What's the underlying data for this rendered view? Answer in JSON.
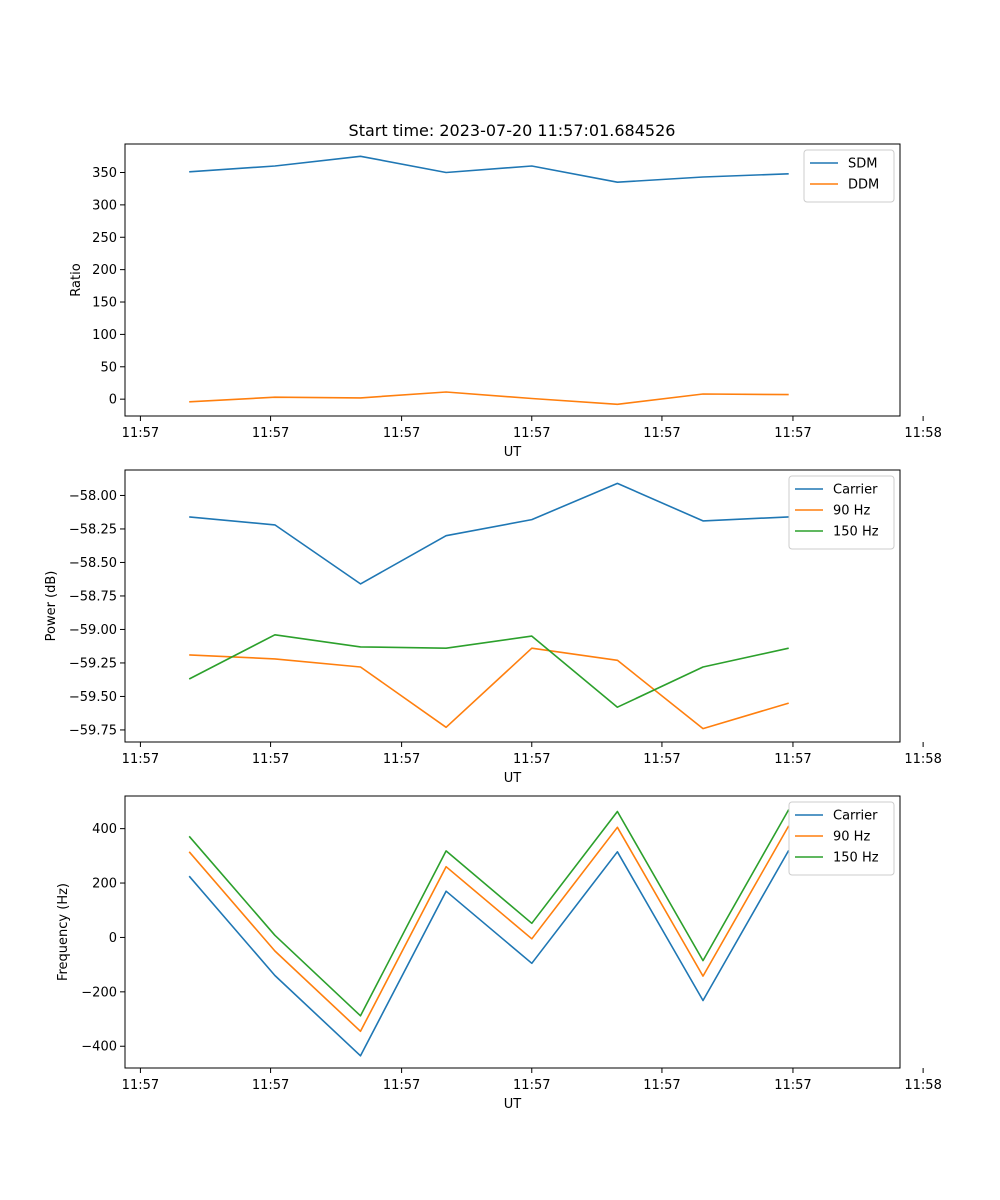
{
  "figure_title": "Start time: 2023-07-20 11:57:01.684526",
  "colors": {
    "blue": "#1f77b4",
    "orange": "#ff7f0e",
    "green": "#2ca02c"
  },
  "chart_data": [
    {
      "type": "line",
      "title": "Start time: 2023-07-20 11:57:01.684526",
      "xlabel": "UT",
      "ylabel": "Ratio",
      "x": [
        1,
        2,
        3,
        4,
        5,
        6,
        7,
        8
      ],
      "xlim": [
        0.25,
        9.3
      ],
      "xticks": [
        0.43,
        1.95,
        3.48,
        5.0,
        6.52,
        8.05,
        9.57
      ],
      "xtick_labels": [
        "11:57",
        "11:57",
        "11:57",
        "11:57",
        "11:57",
        "11:57",
        "11:58"
      ],
      "ylim": [
        -26,
        394
      ],
      "yticks": [
        0,
        50,
        100,
        150,
        200,
        250,
        300,
        350
      ],
      "ytick_labels": [
        "0",
        "50",
        "100",
        "150",
        "200",
        "250",
        "300",
        "350"
      ],
      "legend_position": "upper-right",
      "series": [
        {
          "name": "SDM",
          "color": "#1f77b4",
          "values": [
            351,
            360,
            375,
            350,
            360,
            335,
            343,
            348
          ]
        },
        {
          "name": "DDM",
          "color": "#ff7f0e",
          "values": [
            -4,
            3,
            2,
            11,
            1,
            -8,
            8,
            7
          ]
        }
      ]
    },
    {
      "type": "line",
      "title": "",
      "xlabel": "UT",
      "ylabel": "Power (dB)",
      "x": [
        1,
        2,
        3,
        4,
        5,
        6,
        7,
        8
      ],
      "xlim": [
        0.25,
        9.3
      ],
      "xticks": [
        0.43,
        1.95,
        3.48,
        5.0,
        6.52,
        8.05,
        9.57
      ],
      "xtick_labels": [
        "11:57",
        "11:57",
        "11:57",
        "11:57",
        "11:57",
        "11:57",
        "11:58"
      ],
      "ylim": [
        -59.84,
        -57.81
      ],
      "yticks": [
        -59.75,
        -59.5,
        -59.25,
        -59.0,
        -58.75,
        -58.5,
        -58.25,
        -58.0
      ],
      "ytick_labels": [
        "−59.75",
        "−59.50",
        "−59.25",
        "−59.00",
        "−58.75",
        "−58.50",
        "−58.25",
        "−58.00"
      ],
      "legend_position": "upper-right",
      "series": [
        {
          "name": "Carrier",
          "color": "#1f77b4",
          "values": [
            -58.16,
            -58.22,
            -58.66,
            -58.3,
            -58.18,
            -57.91,
            -58.19,
            -58.16
          ]
        },
        {
          "name": "90 Hz",
          "color": "#ff7f0e",
          "values": [
            -59.19,
            -59.22,
            -59.28,
            -59.73,
            -59.14,
            -59.23,
            -59.74,
            -59.55
          ]
        },
        {
          "name": "150 Hz",
          "color": "#2ca02c",
          "values": [
            -59.37,
            -59.04,
            -59.13,
            -59.14,
            -59.05,
            -59.58,
            -59.28,
            -59.14
          ]
        }
      ]
    },
    {
      "type": "line",
      "title": "",
      "xlabel": "UT",
      "ylabel": "Frequency (Hz)",
      "x": [
        1,
        2,
        3,
        4,
        5,
        6,
        7,
        8
      ],
      "xlim": [
        0.25,
        9.3
      ],
      "xticks": [
        0.43,
        1.95,
        3.48,
        5.0,
        6.52,
        8.05,
        9.57
      ],
      "xtick_labels": [
        "11:57",
        "11:57",
        "11:57",
        "11:57",
        "11:57",
        "11:57",
        "11:58"
      ],
      "ylim": [
        -480,
        520
      ],
      "yticks": [
        -400,
        -200,
        0,
        200,
        400
      ],
      "ytick_labels": [
        "−400",
        "−200",
        "0",
        "200",
        "400"
      ],
      "legend_position": "upper-right",
      "series": [
        {
          "name": "Carrier",
          "color": "#1f77b4",
          "values": [
            225,
            -140,
            -435,
            170,
            -95,
            315,
            -232,
            320
          ]
        },
        {
          "name": "90 Hz",
          "color": "#ff7f0e",
          "values": [
            315,
            -50,
            -345,
            260,
            -5,
            405,
            -142,
            410
          ]
        },
        {
          "name": "150 Hz",
          "color": "#2ca02c",
          "values": [
            372,
            8,
            -288,
            318,
            52,
            463,
            -85,
            470
          ]
        }
      ]
    }
  ]
}
